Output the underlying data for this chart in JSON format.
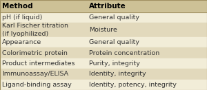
{
  "col1_header": "Method",
  "col2_header": "Attribute",
  "rows": [
    [
      "pH (if liquid)",
      "General quality"
    ],
    [
      "Karl Fischer titration\n(if lyophilized)",
      "Moisture"
    ],
    [
      "Appearance",
      "General quality"
    ],
    [
      "Colorimetric protein",
      "Protein concentration"
    ],
    [
      "Product intermediates",
      "Purity, integrity"
    ],
    [
      "Immunoassay/ELISA",
      "Identity, integrity"
    ],
    [
      "Ligand-binding assay",
      "Identity, potency, integrity"
    ]
  ],
  "header_bg": "#cdc196",
  "row_bg_odd": "#f2edd8",
  "row_bg_even": "#e2d9bc",
  "header_text_color": "#000000",
  "row_text_color": "#333333",
  "border_color": "#a09060",
  "fig_bg": "#f2edd8",
  "col_split": 0.42,
  "header_fontsize": 7.5,
  "row_fontsize": 6.8
}
